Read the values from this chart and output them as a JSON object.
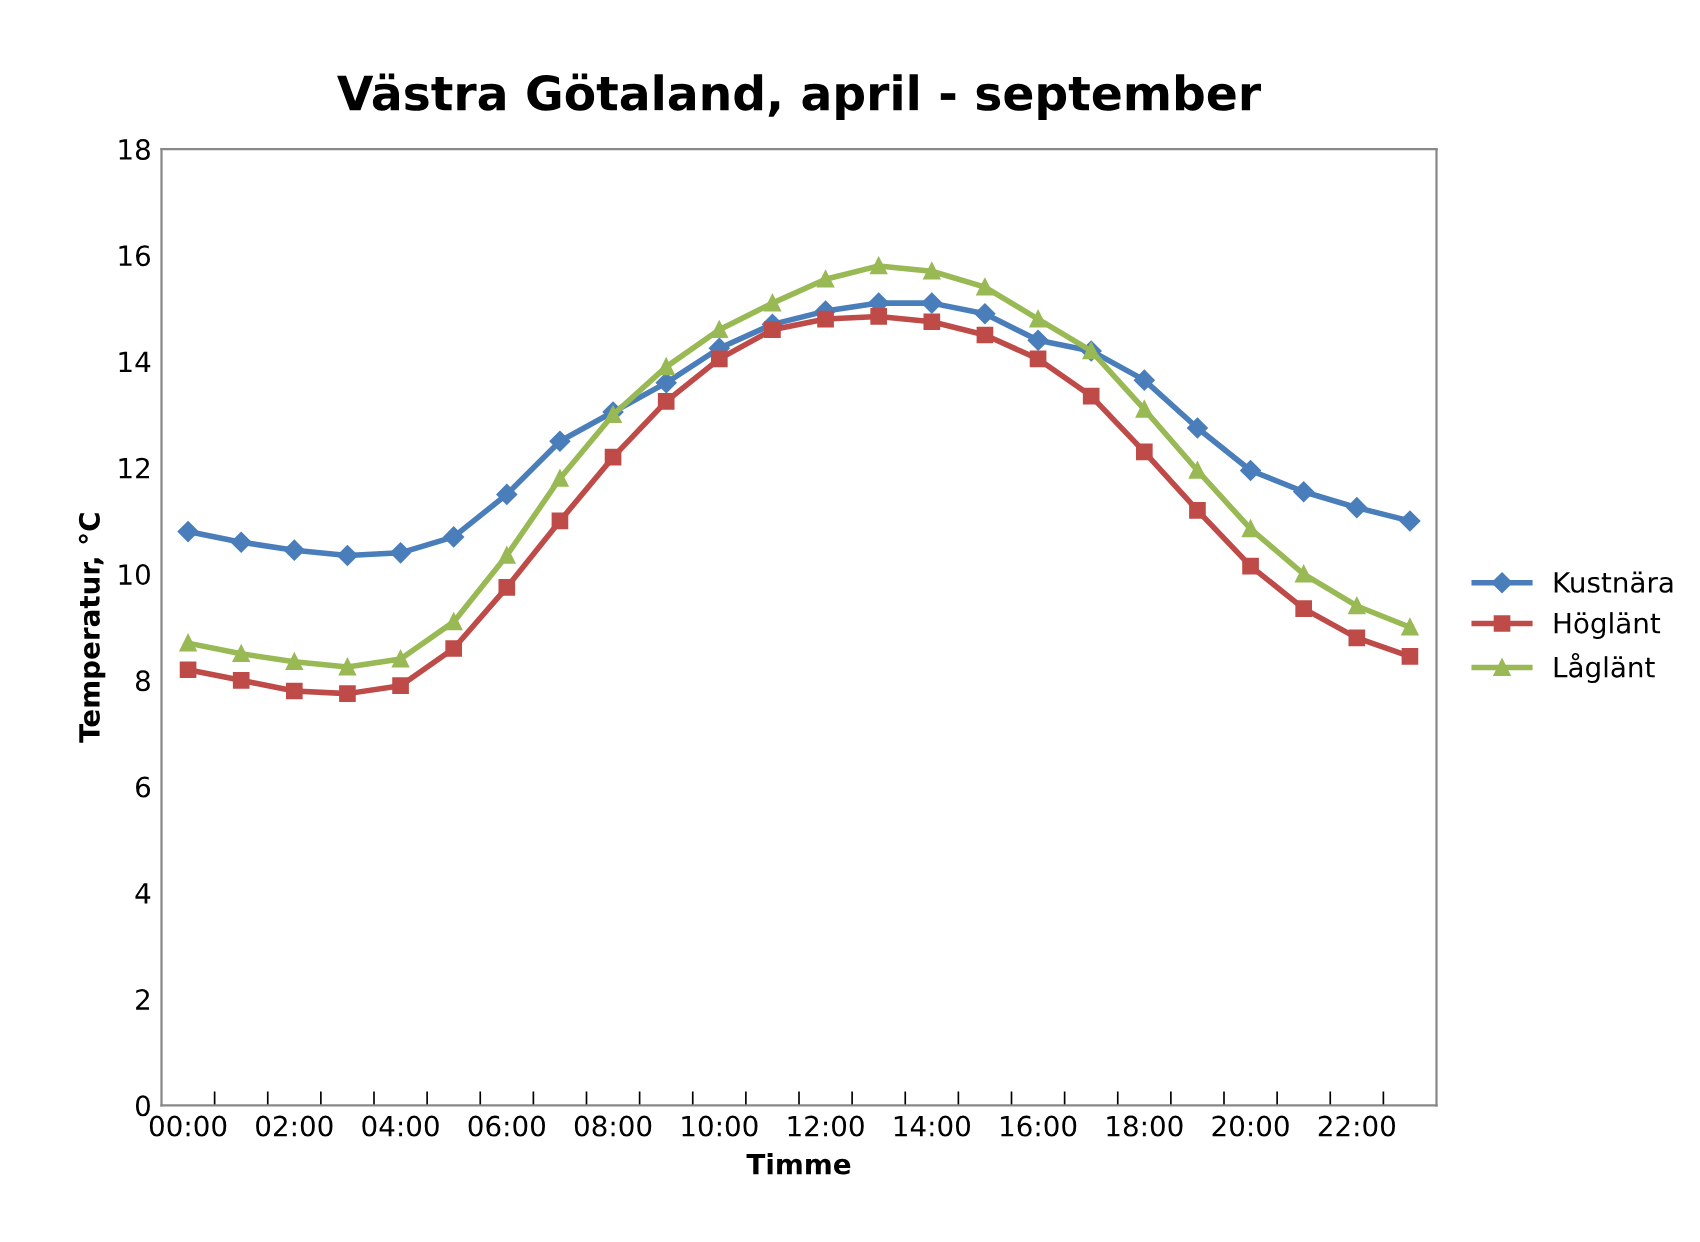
{
  "chart_data": {
    "type": "line",
    "title": "Västra Götaland, april - september",
    "xlabel": "Timme",
    "ylabel": "Temperatur, °C",
    "categories": [
      "00:00",
      null,
      "02:00",
      null,
      "04:00",
      null,
      "06:00",
      null,
      "08:00",
      null,
      "10:00",
      null,
      "12:00",
      null,
      "14:00",
      null,
      "16:00",
      null,
      "18:00",
      null,
      "20:00",
      null,
      "22:00",
      null
    ],
    "series": [
      {
        "name": "Kustnära",
        "color": "#4a7ebb",
        "marker": "diamond",
        "values": [
          10.8,
          10.6,
          10.45,
          10.35,
          10.4,
          10.7,
          11.5,
          12.5,
          13.05,
          13.6,
          14.25,
          14.7,
          14.95,
          15.1,
          15.1,
          14.9,
          14.4,
          14.2,
          13.65,
          12.75,
          11.95,
          11.55,
          11.25,
          11.0
        ]
      },
      {
        "name": "Höglänt",
        "color": "#be4b48",
        "marker": "square",
        "values": [
          8.2,
          8.0,
          7.8,
          7.75,
          7.9,
          8.6,
          9.75,
          11.0,
          12.2,
          13.25,
          14.05,
          14.6,
          14.8,
          14.85,
          14.75,
          14.5,
          14.05,
          13.35,
          12.3,
          11.2,
          10.15,
          9.35,
          8.8,
          8.45
        ]
      },
      {
        "name": "Låglänt",
        "color": "#98b954",
        "marker": "triangle",
        "values": [
          8.7,
          8.5,
          8.35,
          8.25,
          8.4,
          9.1,
          10.35,
          11.8,
          13.0,
          13.9,
          14.6,
          15.1,
          15.55,
          15.8,
          15.7,
          15.4,
          14.8,
          14.2,
          13.1,
          11.95,
          10.85,
          10.0,
          9.4,
          9.0
        ]
      }
    ],
    "ylim": [
      0,
      18
    ],
    "yticks": [
      0,
      2,
      4,
      6,
      8,
      10,
      12,
      14,
      16,
      18
    ],
    "grid": false,
    "legend": "right",
    "line_style": "solid"
  }
}
